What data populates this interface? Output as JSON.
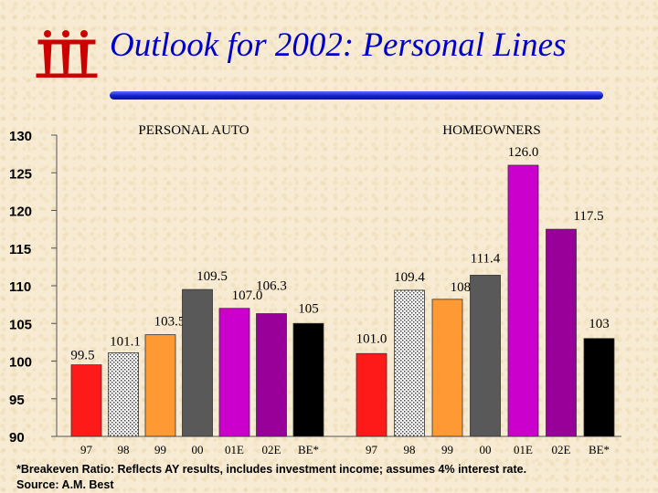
{
  "title": "Outlook for 2002: Personal Lines",
  "logo": {
    "name": "company-logo",
    "lettering": "iii",
    "color": "#cc0000"
  },
  "accent_color": "#0000cc",
  "chart_data": {
    "type": "bar",
    "ylim": [
      90,
      130
    ],
    "yticks": [
      90,
      95,
      100,
      105,
      110,
      115,
      120,
      125,
      130
    ],
    "panels": [
      {
        "title": "PERSONAL AUTO",
        "categories": [
          "97",
          "98",
          "99",
          "00",
          "01E",
          "02E",
          "BE*"
        ],
        "values": [
          99.5,
          101.1,
          103.5,
          109.5,
          107.0,
          106.3,
          105
        ],
        "labels": [
          "99.5",
          "101.1",
          "103.5",
          "109.5",
          "107.0",
          "106.3",
          "105"
        ]
      },
      {
        "title": "HOMEOWNERS",
        "categories": [
          "97",
          "98",
          "99",
          "00",
          "01E",
          "02E",
          "BE*"
        ],
        "values": [
          101.0,
          109.4,
          108.2,
          111.4,
          126.0,
          117.5,
          103
        ],
        "labels": [
          "101.0",
          "109.4",
          "108.2",
          "111.4",
          "126.0",
          "117.5",
          "103"
        ]
      }
    ],
    "bar_colors": [
      "#ff1a1a",
      "pattern-dotted-white",
      "#ff9933",
      "#595959",
      "#cc00cc",
      "#990099",
      "#000000"
    ]
  },
  "footnotes": {
    "note": "*Breakeven Ratio: Reflects AY results, includes investment income; assumes 4% interest rate.",
    "source": "Source:  A.M. Best"
  }
}
